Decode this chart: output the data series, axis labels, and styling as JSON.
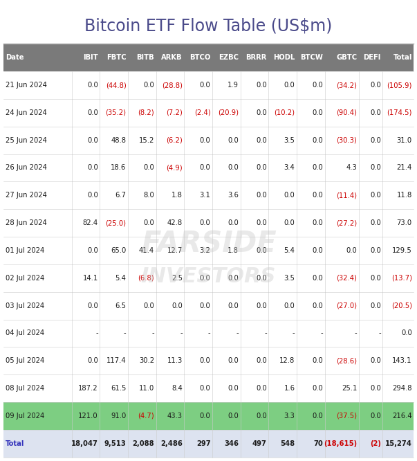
{
  "title": "Bitcoin ETF Flow Table (US$m)",
  "columns": [
    "Date",
    "IBIT",
    "FBTC",
    "BITB",
    "ARKB",
    "BTCO",
    "EZBC",
    "BRRR",
    "HODL",
    "BTCW",
    "GBTC",
    "DEFI",
    "Total"
  ],
  "rows": [
    [
      "21 Jun 2024",
      "0.0",
      "(44.8)",
      "0.0",
      "(28.8)",
      "0.0",
      "1.9",
      "0.0",
      "0.0",
      "0.0",
      "(34.2)",
      "0.0",
      "(105.9)"
    ],
    [
      "24 Jun 2024",
      "0.0",
      "(35.2)",
      "(8.2)",
      "(7.2)",
      "(2.4)",
      "(20.9)",
      "0.0",
      "(10.2)",
      "0.0",
      "(90.4)",
      "0.0",
      "(174.5)"
    ],
    [
      "25 Jun 2024",
      "0.0",
      "48.8",
      "15.2",
      "(6.2)",
      "0.0",
      "0.0",
      "0.0",
      "3.5",
      "0.0",
      "(30.3)",
      "0.0",
      "31.0"
    ],
    [
      "26 Jun 2024",
      "0.0",
      "18.6",
      "0.0",
      "(4.9)",
      "0.0",
      "0.0",
      "0.0",
      "3.4",
      "0.0",
      "4.3",
      "0.0",
      "21.4"
    ],
    [
      "27 Jun 2024",
      "0.0",
      "6.7",
      "8.0",
      "1.8",
      "3.1",
      "3.6",
      "0.0",
      "0.0",
      "0.0",
      "(11.4)",
      "0.0",
      "11.8"
    ],
    [
      "28 Jun 2024",
      "82.4",
      "(25.0)",
      "0.0",
      "42.8",
      "0.0",
      "0.0",
      "0.0",
      "0.0",
      "0.0",
      "(27.2)",
      "0.0",
      "73.0"
    ],
    [
      "01 Jul 2024",
      "0.0",
      "65.0",
      "41.4",
      "12.7",
      "3.2",
      "1.8",
      "0.0",
      "5.4",
      "0.0",
      "0.0",
      "0.0",
      "129.5"
    ],
    [
      "02 Jul 2024",
      "14.1",
      "5.4",
      "(6.8)",
      "2.5",
      "0.0",
      "0.0",
      "0.0",
      "3.5",
      "0.0",
      "(32.4)",
      "0.0",
      "(13.7)"
    ],
    [
      "03 Jul 2024",
      "0.0",
      "6.5",
      "0.0",
      "0.0",
      "0.0",
      "0.0",
      "0.0",
      "0.0",
      "0.0",
      "(27.0)",
      "0.0",
      "(20.5)"
    ],
    [
      "04 Jul 2024",
      "-",
      "-",
      "-",
      "-",
      "-",
      "-",
      "-",
      "-",
      "-",
      "-",
      "-",
      "0.0"
    ],
    [
      "05 Jul 2024",
      "0.0",
      "117.4",
      "30.2",
      "11.3",
      "0.0",
      "0.0",
      "0.0",
      "12.8",
      "0.0",
      "(28.6)",
      "0.0",
      "143.1"
    ],
    [
      "08 Jul 2024",
      "187.2",
      "61.5",
      "11.0",
      "8.4",
      "0.0",
      "0.0",
      "0.0",
      "1.6",
      "0.0",
      "25.1",
      "0.0",
      "294.8"
    ],
    [
      "09 Jul 2024",
      "121.0",
      "91.0",
      "(4.7)",
      "43.3",
      "0.0",
      "0.0",
      "0.0",
      "3.3",
      "0.0",
      "(37.5)",
      "0.0",
      "216.4"
    ],
    [
      "Total",
      "18,047",
      "9,513",
      "2,088",
      "2,486",
      "297",
      "346",
      "497",
      "548",
      "70",
      "(18,615)",
      "(2)",
      "15,274"
    ]
  ],
  "row_bg_colors": [
    "#ffffff",
    "#ffffff",
    "#ffffff",
    "#ffffff",
    "#ffffff",
    "#ffffff",
    "#ffffff",
    "#ffffff",
    "#ffffff",
    "#ffffff",
    "#ffffff",
    "#ffffff",
    "#7dce82",
    "#dde3f0"
  ],
  "header_bg": "#7a7a7a",
  "header_text": "#ffffff",
  "title_color": "#4a4a8a",
  "negative_color": "#cc0000",
  "positive_color": "#1a1a1a",
  "date_color": "#1a1a1a",
  "total_row_date_color": "#3333bb",
  "watermark_color": "#c8c8c8",
  "watermark_alpha": 0.4,
  "col_widths": [
    1.65,
    0.68,
    0.68,
    0.68,
    0.68,
    0.68,
    0.68,
    0.68,
    0.68,
    0.68,
    0.82,
    0.58,
    0.75
  ]
}
